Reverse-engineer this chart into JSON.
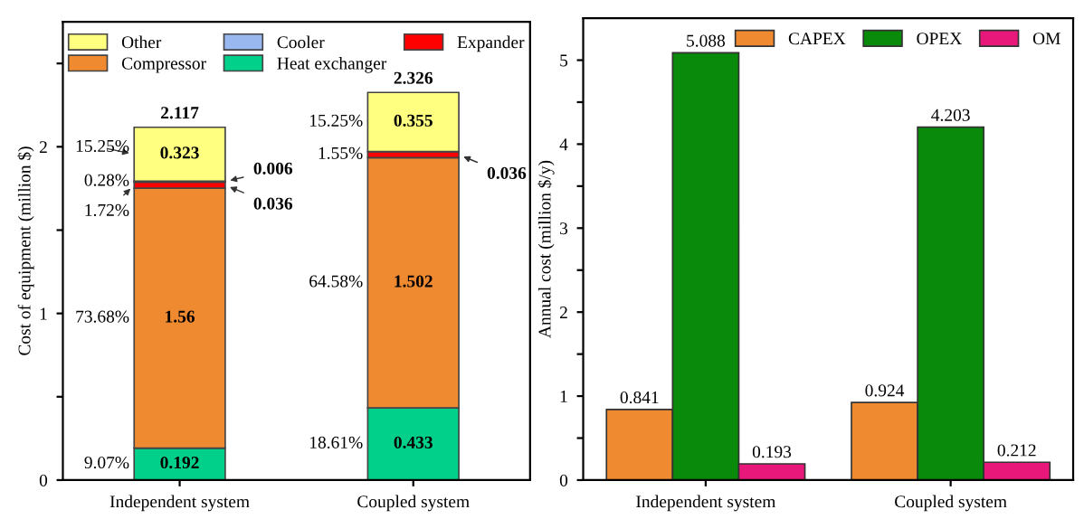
{
  "chart_data": [
    {
      "type": "bar",
      "stacked": true,
      "ylabel": "Cost of equipment (million $)",
      "categories": [
        "Independent system",
        "Coupled system"
      ],
      "series": [
        {
          "name": "Heat exchanger",
          "color": "#00d08a",
          "values": [
            0.192,
            0.433
          ],
          "value_labels": [
            "0.192",
            "0.433"
          ]
        },
        {
          "name": "Compressor",
          "color": "#f08a30",
          "values": [
            1.56,
            1.502
          ],
          "value_labels": [
            "1.56",
            "1.502"
          ]
        },
        {
          "name": "Expander",
          "color": "#ff0000",
          "values": [
            0.036,
            0.036
          ],
          "value_labels": [
            "0.036",
            "0.036"
          ]
        },
        {
          "name": "Cooler",
          "color": "#9ab8f0",
          "values": [
            0.006,
            0
          ],
          "value_labels": [
            "0.006",
            null
          ]
        },
        {
          "name": "Other",
          "color": "#ffff80",
          "values": [
            0.323,
            0.355
          ],
          "value_labels": [
            "0.323",
            "0.355"
          ]
        }
      ],
      "totals": [
        "2.117",
        "2.326"
      ],
      "annotations": [
        "9.07%",
        "73.68%",
        "1.72%",
        "0.28%",
        "15.25%",
        "18.61%",
        "64.58%",
        "1.55%",
        "15.25%"
      ],
      "ylim": [
        0,
        2.75
      ],
      "yticks": [
        0,
        {
          "value": 0.5,
          "label": null
        },
        1,
        {
          "value": 1.5,
          "label": null
        },
        2,
        {
          "value": 2.5,
          "label": null
        }
      ],
      "legend": "top",
      "grid": false
    },
    {
      "type": "bar",
      "ylabel": "Annual cost (million $/y)",
      "categories": [
        "Independent system",
        "Coupled system"
      ],
      "series": [
        {
          "name": "CAPEX",
          "color": "#f08a30",
          "values": [
            0.841,
            0.924
          ]
        },
        {
          "name": "OPEX",
          "color": "#0a8a0a",
          "values": [
            5.088,
            4.203
          ]
        },
        {
          "name": "OM",
          "color": "#e8187a",
          "values": [
            0.193,
            0.212
          ]
        }
      ],
      "data_labels": true,
      "ylim": [
        0,
        5.5
      ],
      "yticks": [
        0,
        {
          "value": 0.5,
          "label": null
        },
        1,
        {
          "value": 1.5,
          "label": null
        },
        2,
        {
          "value": 2.5,
          "label": null
        },
        3,
        {
          "value": 3.5,
          "label": null
        },
        4,
        {
          "value": 4.5,
          "label": null
        },
        5
      ],
      "legend": "top right",
      "grid": false
    }
  ]
}
